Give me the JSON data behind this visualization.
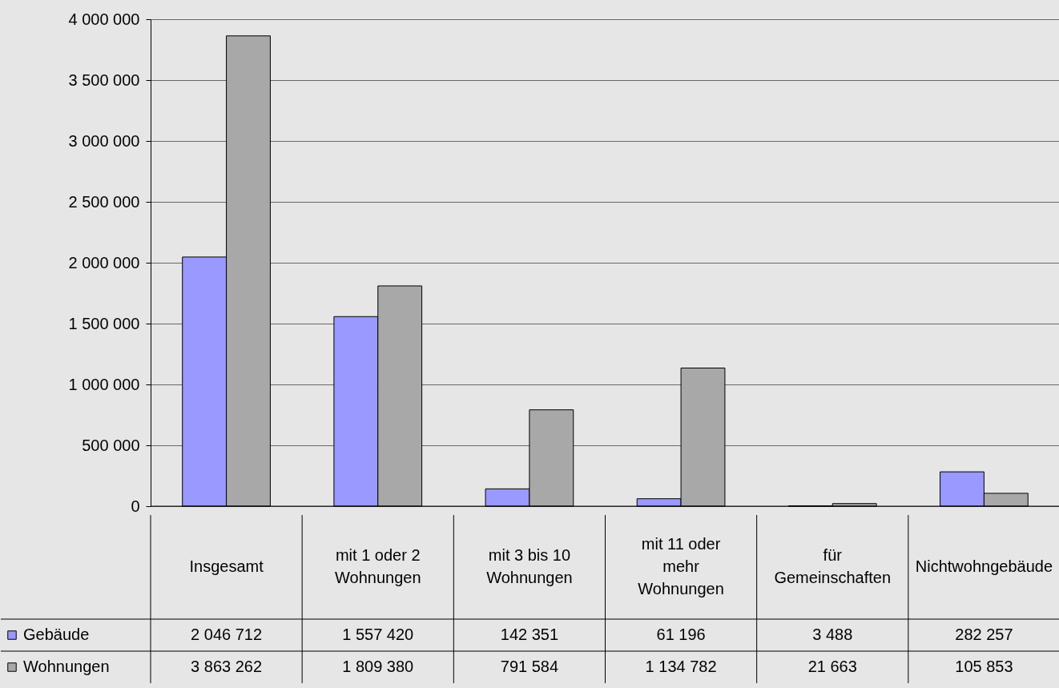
{
  "chart_data": {
    "type": "bar",
    "categories": [
      "Insgesamt",
      "mit 1 oder 2 Wohnungen",
      "mit 3 bis 10 Wohnungen",
      "mit 11 oder mehr Wohnungen",
      "für Gemeinschaften",
      "Nichtwohngebäude"
    ],
    "series": [
      {
        "name": "Gebäude",
        "color": "#9999ff",
        "values": [
          2046712,
          1557420,
          142351,
          61196,
          3488,
          282257
        ]
      },
      {
        "name": "Wohnungen",
        "color": "#a8a8a8",
        "values": [
          3863262,
          1809380,
          791584,
          1134782,
          21663,
          105853
        ]
      }
    ],
    "ylim": [
      0,
      4000000
    ],
    "yticks": [
      0,
      500000,
      1000000,
      1500000,
      2000000,
      2500000,
      3000000,
      3500000,
      4000000
    ],
    "grid": "y",
    "data_labels": true,
    "legend": "bottom left"
  }
}
